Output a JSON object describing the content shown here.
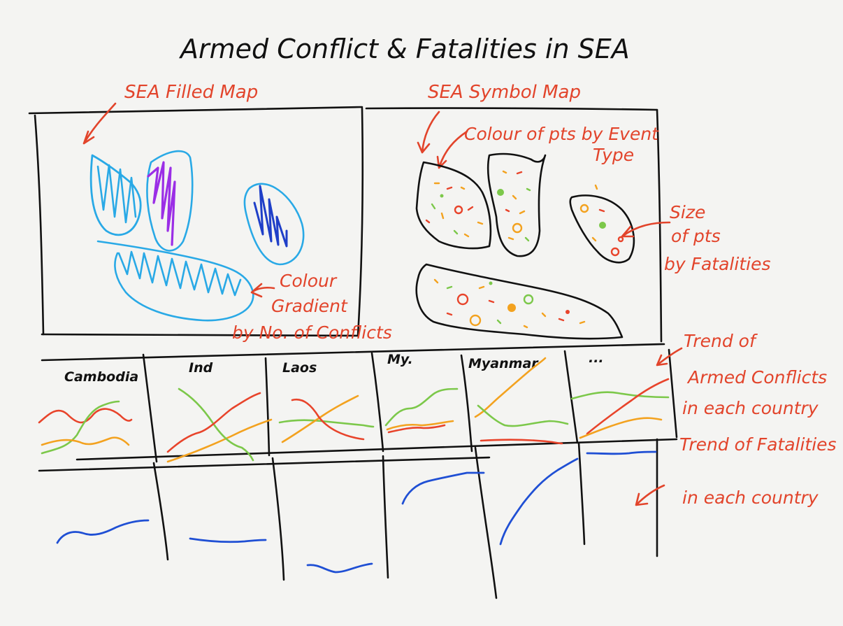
{
  "title": "Armed Conflict & Fatalities in SEA",
  "colors": {
    "ink": "#111111",
    "annotation": "#e2442b",
    "cyan": "#29a9e6",
    "purple": "#9b2ee6",
    "navy": "#1f3fc8",
    "green": "#7cc84a",
    "orange": "#f3a21f",
    "red": "#e8442b",
    "blue": "#1f4fd4"
  },
  "panels": {
    "filled_map": {
      "label": "SEA Filled Map",
      "note": [
        "Colour",
        "Gradient",
        "by No. of Conflicts"
      ]
    },
    "symbol_map": {
      "label": "SEA Symbol Map",
      "note_color": [
        "Colour of pts by Event",
        "Type"
      ],
      "note_size": [
        "Size",
        "of pts",
        "by Fatalities"
      ]
    }
  },
  "countries": [
    "Cambodia",
    "Ind",
    "Laos",
    "My.",
    "Myanmar",
    "..."
  ],
  "notes": {
    "trend_conflicts": [
      "Trend of",
      "Armed Conflicts",
      "in each country"
    ],
    "trend_fatalities": [
      "Trend of Fatalities",
      "in each country"
    ]
  }
}
